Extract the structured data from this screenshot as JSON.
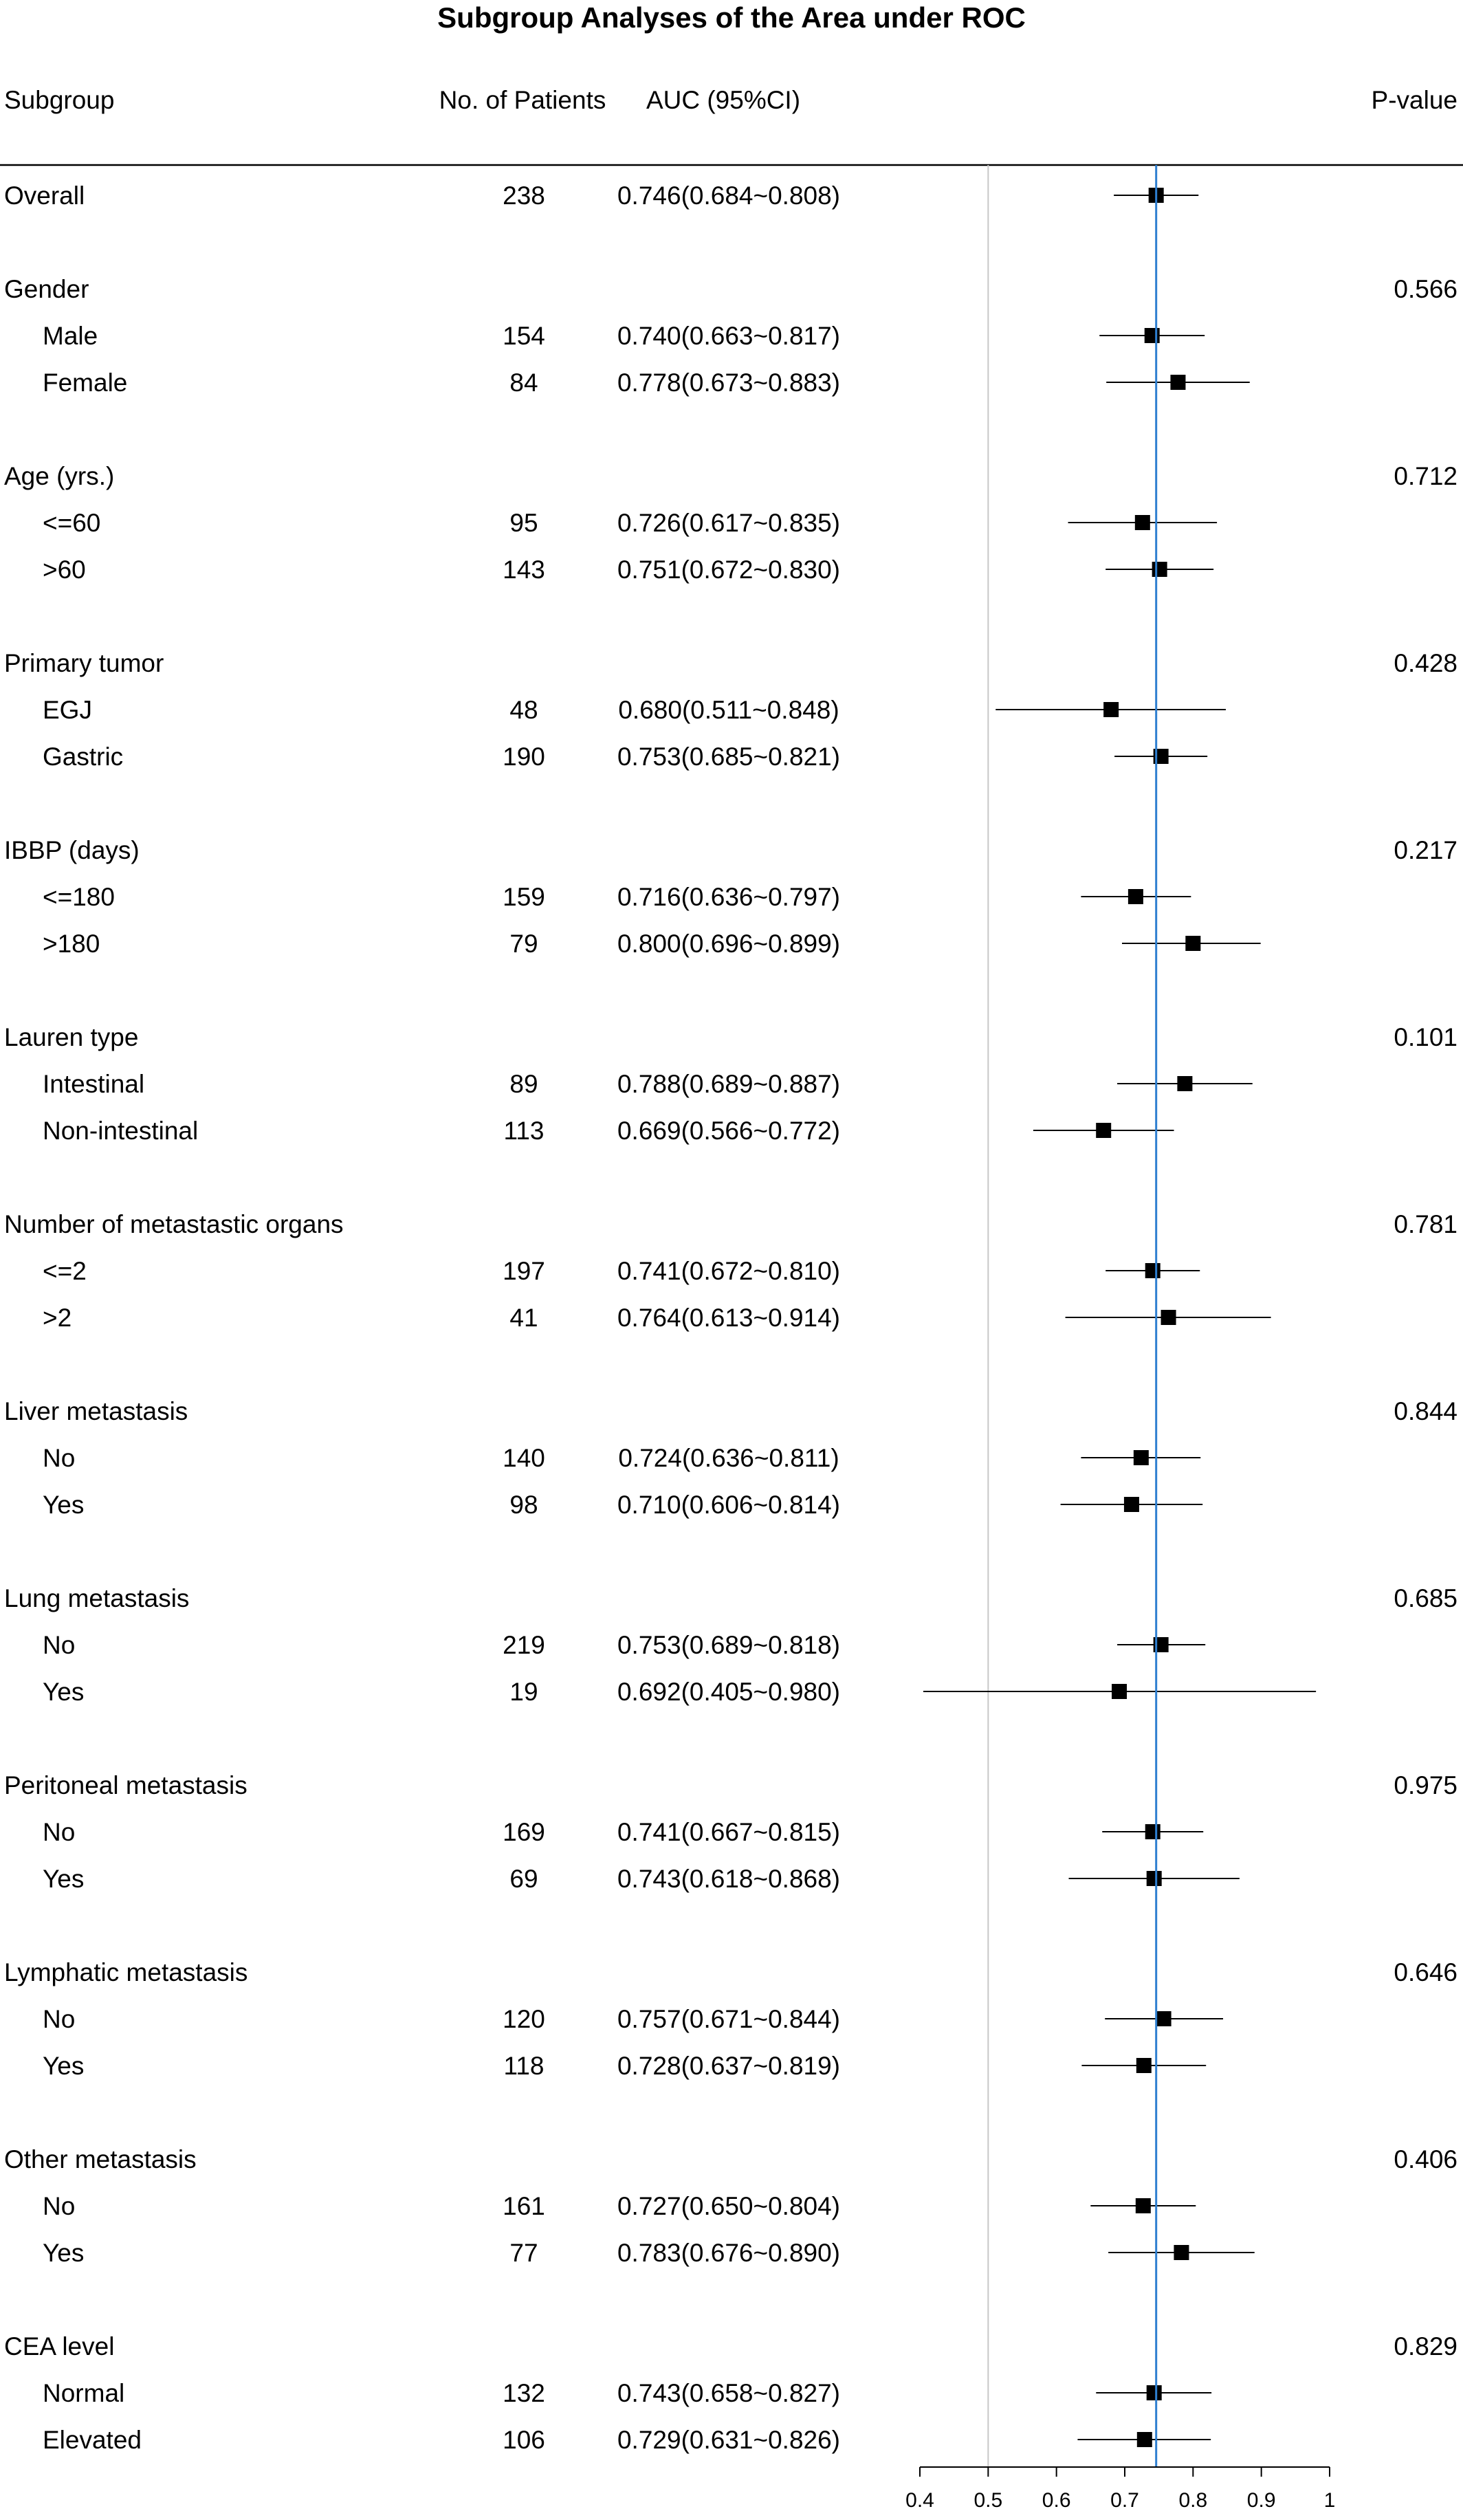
{
  "chart_data": {
    "type": "forest",
    "title": "Subgroup Analyses of the Area under ROC",
    "columns": {
      "subgroup": "Subgroup",
      "patients": "No. of Patients",
      "auc": "AUC (95%CI)",
      "pvalue": "P-value"
    },
    "xlim": [
      0.4,
      1.0
    ],
    "x_ticks": [
      "0.4",
      "0.5",
      "0.6",
      "0.7",
      "0.8",
      "0.9",
      "1"
    ],
    "reference_line": 0.746,
    "colors": {
      "reference_line": "#2e7fd0",
      "marker": "#000000",
      "grid": "#c8c8c8"
    },
    "rows": [
      {
        "label": "Overall",
        "n": "238",
        "auc_text": "0.746(0.684~0.808)",
        "auc": 0.746,
        "lo": 0.684,
        "hi": 0.808,
        "header": false
      },
      {
        "label": "Gender",
        "p": "0.566",
        "header": true
      },
      {
        "label": "Male",
        "n": "154",
        "auc_text": "0.740(0.663~0.817)",
        "auc": 0.74,
        "lo": 0.663,
        "hi": 0.817,
        "header": false
      },
      {
        "label": "Female",
        "n": "84",
        "auc_text": "0.778(0.673~0.883)",
        "auc": 0.778,
        "lo": 0.673,
        "hi": 0.883,
        "header": false
      },
      {
        "label": "Age (yrs.)",
        "p": "0.712",
        "header": true
      },
      {
        "label": "<=60",
        "n": "95",
        "auc_text": "0.726(0.617~0.835)",
        "auc": 0.726,
        "lo": 0.617,
        "hi": 0.835,
        "header": false
      },
      {
        "label": ">60",
        "n": "143",
        "auc_text": "0.751(0.672~0.830)",
        "auc": 0.751,
        "lo": 0.672,
        "hi": 0.83,
        "header": false
      },
      {
        "label": "Primary tumor",
        "p": "0.428",
        "header": true
      },
      {
        "label": "EGJ",
        "n": "48",
        "auc_text": "0.680(0.511~0.848)",
        "auc": 0.68,
        "lo": 0.511,
        "hi": 0.848,
        "header": false
      },
      {
        "label": "Gastric",
        "n": "190",
        "auc_text": "0.753(0.685~0.821)",
        "auc": 0.753,
        "lo": 0.685,
        "hi": 0.821,
        "header": false
      },
      {
        "label": "IBBP (days)",
        "p": "0.217",
        "header": true
      },
      {
        "label": "<=180",
        "n": "159",
        "auc_text": "0.716(0.636~0.797)",
        "auc": 0.716,
        "lo": 0.636,
        "hi": 0.797,
        "header": false
      },
      {
        "label": ">180",
        "n": "79",
        "auc_text": "0.800(0.696~0.899)",
        "auc": 0.8,
        "lo": 0.696,
        "hi": 0.899,
        "header": false
      },
      {
        "label": "Lauren type",
        "p": "0.101",
        "header": true
      },
      {
        "label": "Intestinal",
        "n": "89",
        "auc_text": "0.788(0.689~0.887)",
        "auc": 0.788,
        "lo": 0.689,
        "hi": 0.887,
        "header": false
      },
      {
        "label": "Non-intestinal",
        "n": "113",
        "auc_text": "0.669(0.566~0.772)",
        "auc": 0.669,
        "lo": 0.566,
        "hi": 0.772,
        "header": false
      },
      {
        "label": "Number of metastastic organs",
        "p": "0.781",
        "header": true
      },
      {
        "label": "<=2",
        "n": "197",
        "auc_text": "0.741(0.672~0.810)",
        "auc": 0.741,
        "lo": 0.672,
        "hi": 0.81,
        "header": false
      },
      {
        "label": ">2",
        "n": "41",
        "auc_text": "0.764(0.613~0.914)",
        "auc": 0.764,
        "lo": 0.613,
        "hi": 0.914,
        "header": false
      },
      {
        "label": "Liver metastasis",
        "p": "0.844",
        "header": true
      },
      {
        "label": "No",
        "n": "140",
        "auc_text": "0.724(0.636~0.811)",
        "auc": 0.724,
        "lo": 0.636,
        "hi": 0.811,
        "header": false
      },
      {
        "label": "Yes",
        "n": "98",
        "auc_text": "0.710(0.606~0.814)",
        "auc": 0.71,
        "lo": 0.606,
        "hi": 0.814,
        "header": false
      },
      {
        "label": "Lung metastasis",
        "p": "0.685",
        "header": true
      },
      {
        "label": "No",
        "n": "219",
        "auc_text": "0.753(0.689~0.818)",
        "auc": 0.753,
        "lo": 0.689,
        "hi": 0.818,
        "header": false
      },
      {
        "label": "Yes",
        "n": "19",
        "auc_text": "0.692(0.405~0.980)",
        "auc": 0.692,
        "lo": 0.405,
        "hi": 0.98,
        "header": false
      },
      {
        "label": "Peritoneal metastasis",
        "p": "0.975",
        "header": true
      },
      {
        "label": "No",
        "n": "169",
        "auc_text": "0.741(0.667~0.815)",
        "auc": 0.741,
        "lo": 0.667,
        "hi": 0.815,
        "header": false
      },
      {
        "label": "Yes",
        "n": "69",
        "auc_text": "0.743(0.618~0.868)",
        "auc": 0.743,
        "lo": 0.618,
        "hi": 0.868,
        "header": false
      },
      {
        "label": "Lymphatic metastasis",
        "p": "0.646",
        "header": true
      },
      {
        "label": "No",
        "n": "120",
        "auc_text": "0.757(0.671~0.844)",
        "auc": 0.757,
        "lo": 0.671,
        "hi": 0.844,
        "header": false
      },
      {
        "label": "Yes",
        "n": "118",
        "auc_text": "0.728(0.637~0.819)",
        "auc": 0.728,
        "lo": 0.637,
        "hi": 0.819,
        "header": false
      },
      {
        "label": "Other metastasis",
        "p": "0.406",
        "header": true
      },
      {
        "label": "No",
        "n": "161",
        "auc_text": "0.727(0.650~0.804)",
        "auc": 0.727,
        "lo": 0.65,
        "hi": 0.804,
        "header": false
      },
      {
        "label": "Yes",
        "n": "77",
        "auc_text": "0.783(0.676~0.890)",
        "auc": 0.783,
        "lo": 0.676,
        "hi": 0.89,
        "header": false
      },
      {
        "label": "CEA level",
        "p": "0.829",
        "header": true
      },
      {
        "label": "Normal",
        "n": "132",
        "auc_text": "0.743(0.658~0.827)",
        "auc": 0.743,
        "lo": 0.658,
        "hi": 0.827,
        "header": false
      },
      {
        "label": "Elevated",
        "n": "106",
        "auc_text": "0.729(0.631~0.826)",
        "auc": 0.729,
        "lo": 0.631,
        "hi": 0.826,
        "header": false
      }
    ]
  }
}
